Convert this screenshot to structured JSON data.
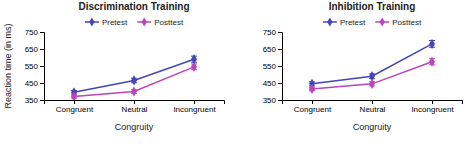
{
  "chart_data": [
    {
      "type": "line",
      "title": "Discrimination Training",
      "x_label": "Congruity",
      "y_label": "Reaction time (in ms)",
      "categories": [
        "Congruent",
        "Neutral",
        "Incongruent"
      ],
      "series": [
        {
          "name": "Pretest",
          "color": "#4444bb",
          "marker": "diamond",
          "values": [
            395,
            465,
            590
          ],
          "errors": [
            10,
            13,
            18
          ]
        },
        {
          "name": "Posttest",
          "color": "#bb44bb",
          "marker": "diamond",
          "values": [
            370,
            400,
            545
          ],
          "errors": [
            9,
            11,
            17
          ]
        }
      ],
      "ylim": [
        350,
        750
      ],
      "yticks": [
        350,
        450,
        550,
        650,
        750
      ],
      "legend": "top",
      "grid": false
    },
    {
      "type": "line",
      "title": "Inhibition Training",
      "x_label": "Congruity",
      "categories": [
        "Congruent",
        "Neutral",
        "Incongruent"
      ],
      "series": [
        {
          "name": "Pretest",
          "color": "#4444bb",
          "marker": "diamond",
          "values": [
            445,
            490,
            680
          ],
          "errors": [
            12,
            14,
            20
          ]
        },
        {
          "name": "Posttest",
          "color": "#bb44bb",
          "marker": "diamond",
          "values": [
            415,
            445,
            575
          ],
          "errors": [
            10,
            12,
            18
          ]
        }
      ],
      "ylim": [
        350,
        750
      ],
      "yticks": [
        350,
        450,
        550,
        650,
        750
      ],
      "legend": "top",
      "grid": false
    }
  ]
}
